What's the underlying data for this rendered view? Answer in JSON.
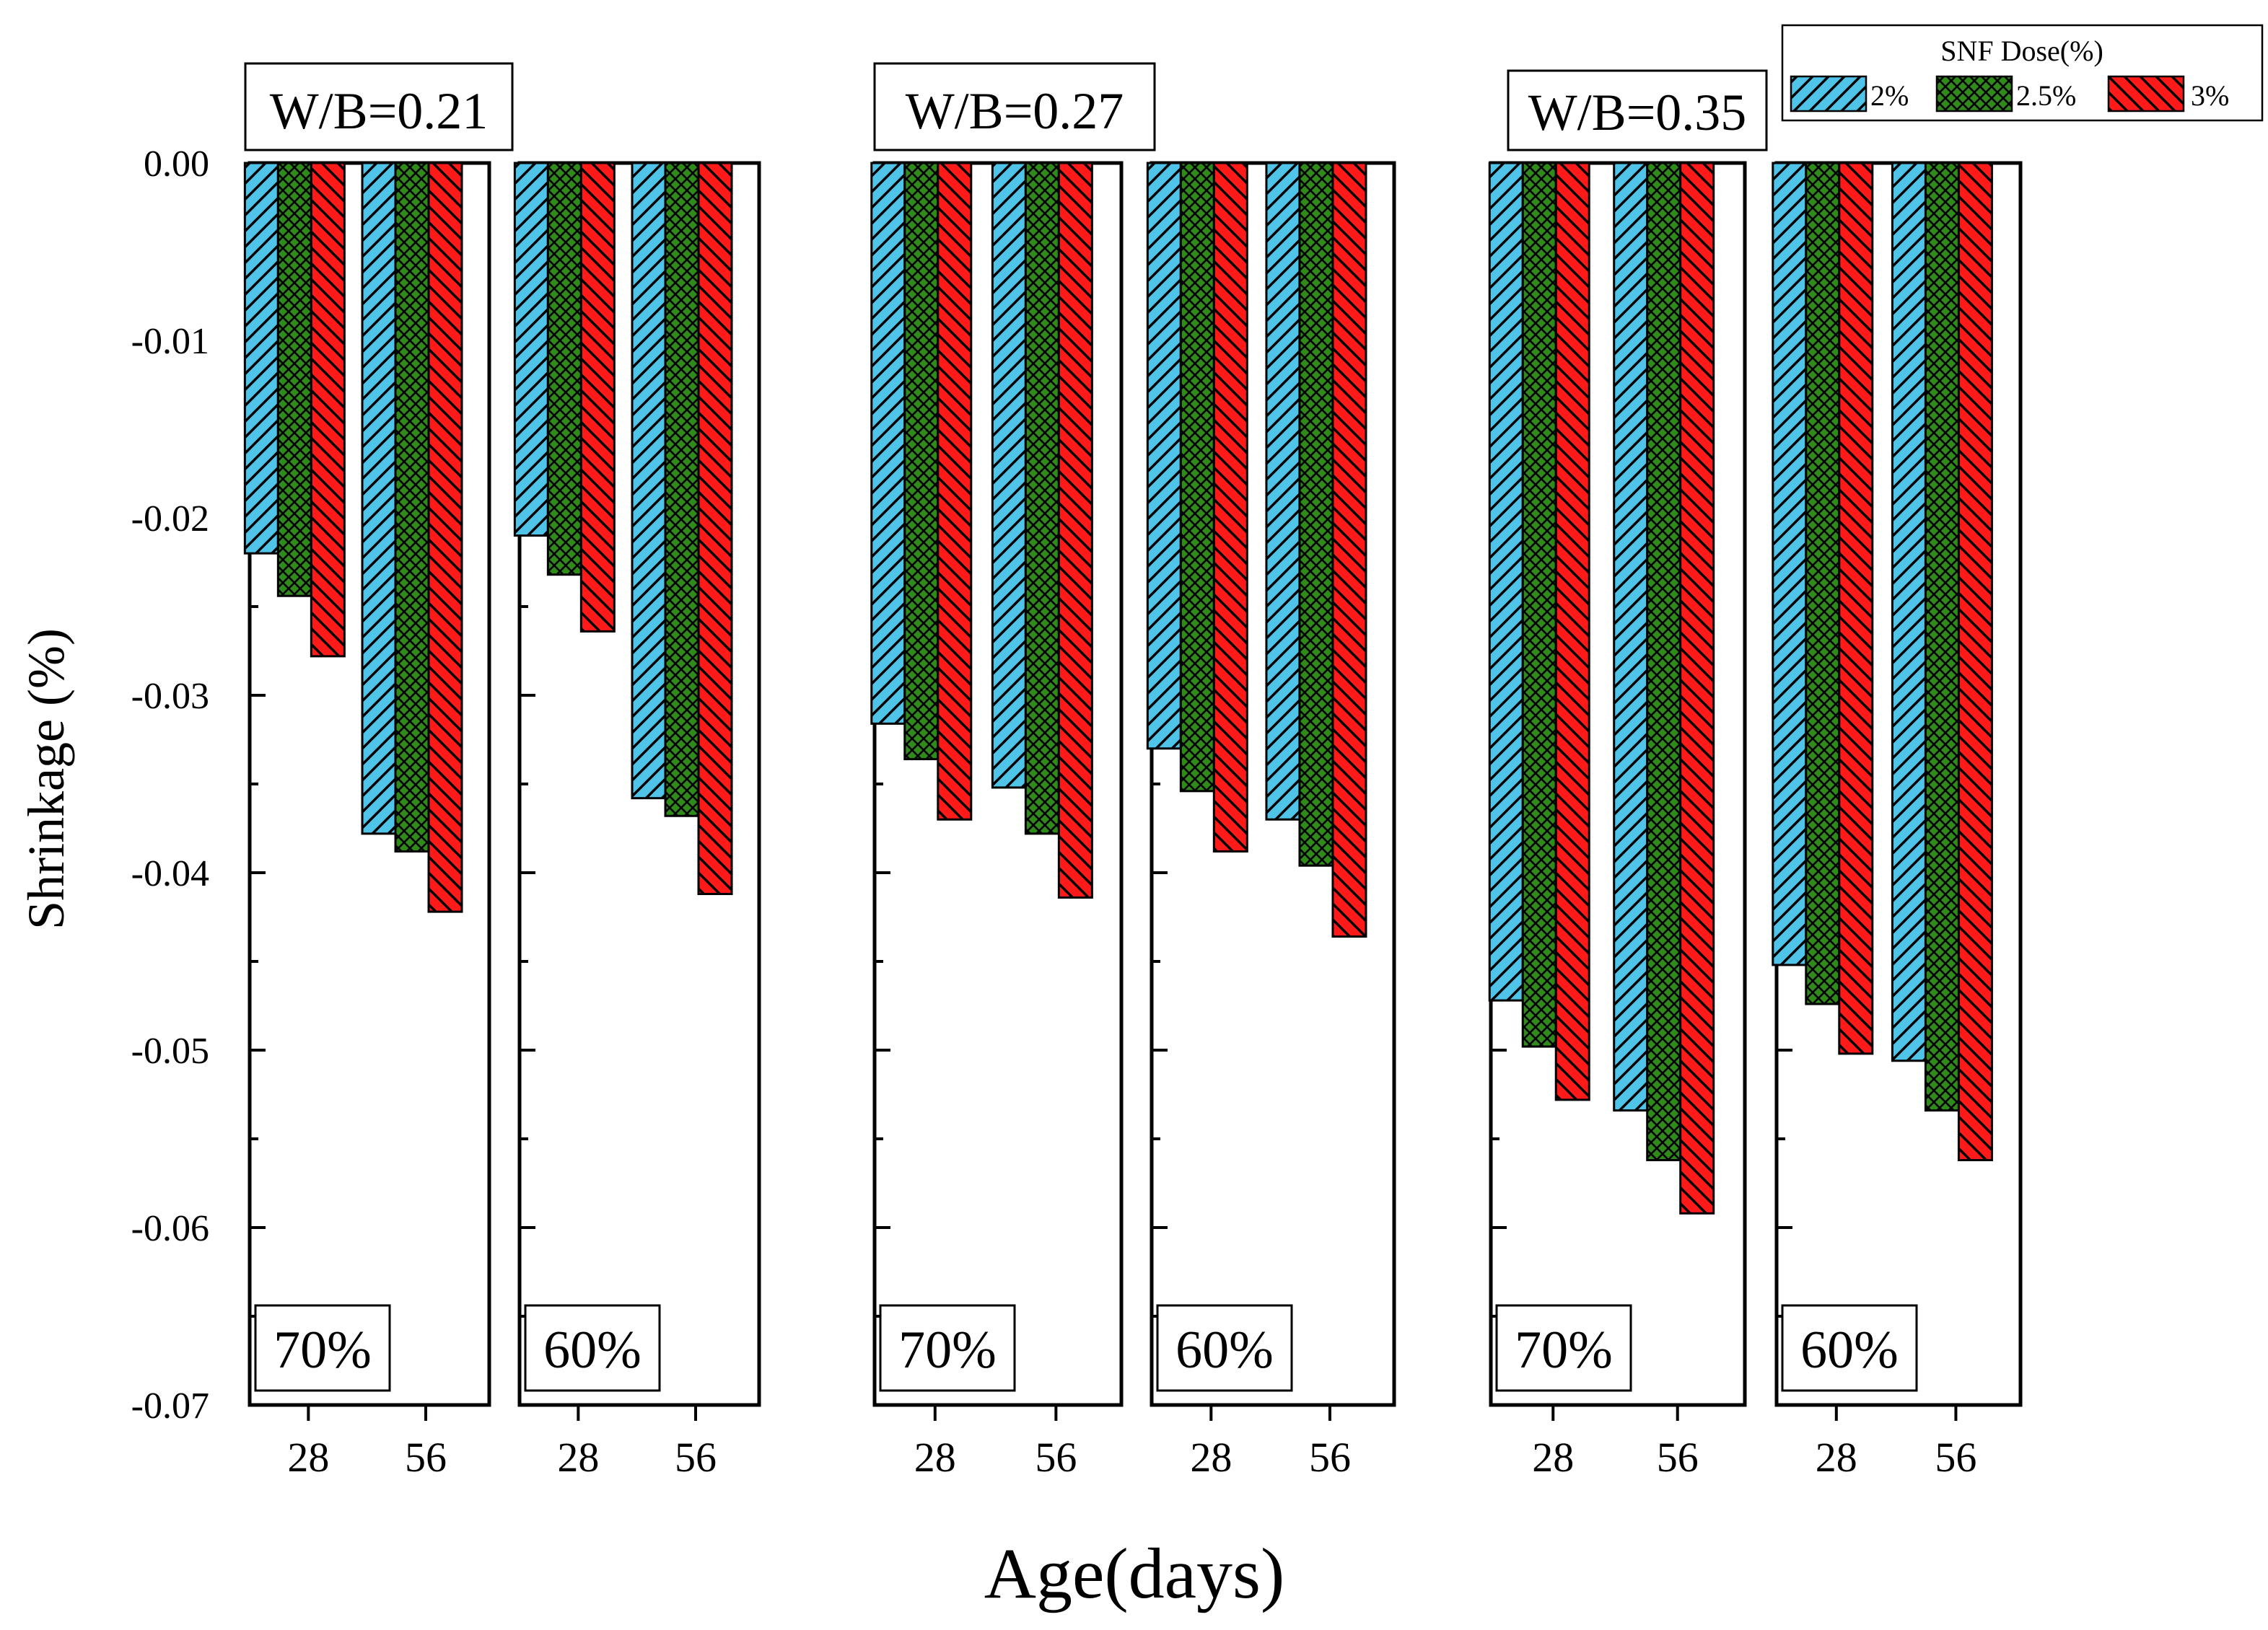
{
  "chart_data": {
    "type": "bar",
    "ylabel": "Shrinkage (%)",
    "xlabel": "Age(days)",
    "ylim": [
      -0.07,
      0
    ],
    "y_ticks": [
      "0.00",
      "-0.01",
      "-0.02",
      "-0.03",
      "-0.04",
      "-0.05",
      "-0.06",
      "-0.07"
    ],
    "y_tick_values": [
      0,
      -0.01,
      -0.02,
      -0.03,
      -0.04,
      -0.05,
      -0.06,
      -0.07
    ],
    "categories": [
      "28",
      "56"
    ],
    "legend": {
      "title": "SNF Dose(%)",
      "entries": [
        {
          "name": "2%",
          "color": "#4fc3e8",
          "pattern": "diagonal-up"
        },
        {
          "name": "2.5%",
          "color": "#2e8b1a",
          "pattern": "crosshatch"
        },
        {
          "name": "3%",
          "color": "#ff1a1a",
          "pattern": "diagonal-down"
        }
      ]
    },
    "groups": [
      {
        "wb_label": "W/B=0.21",
        "panels": [
          {
            "label": "70%",
            "series": [
              {
                "name": "2%",
                "values": [
                  -0.022,
                  -0.0378
                ]
              },
              {
                "name": "2.5%",
                "values": [
                  -0.0244,
                  -0.0388
                ]
              },
              {
                "name": "3%",
                "values": [
                  -0.0278,
                  -0.0422
                ]
              }
            ]
          },
          {
            "label": "60%",
            "series": [
              {
                "name": "2%",
                "values": [
                  -0.021,
                  -0.0358
                ]
              },
              {
                "name": "2.5%",
                "values": [
                  -0.0232,
                  -0.0368
                ]
              },
              {
                "name": "3%",
                "values": [
                  -0.0264,
                  -0.0412
                ]
              }
            ]
          }
        ]
      },
      {
        "wb_label": "W/B=0.27",
        "panels": [
          {
            "label": "70%",
            "series": [
              {
                "name": "2%",
                "values": [
                  -0.0316,
                  -0.0352
                ]
              },
              {
                "name": "2.5%",
                "values": [
                  -0.0336,
                  -0.0378
                ]
              },
              {
                "name": "3%",
                "values": [
                  -0.037,
                  -0.0414
                ]
              }
            ]
          },
          {
            "label": "60%",
            "series": [
              {
                "name": "2%",
                "values": [
                  -0.033,
                  -0.037
                ]
              },
              {
                "name": "2.5%",
                "values": [
                  -0.0354,
                  -0.0396
                ]
              },
              {
                "name": "3%",
                "values": [
                  -0.0388,
                  -0.0436
                ]
              }
            ]
          }
        ]
      },
      {
        "wb_label": "W/B=0.35",
        "panels": [
          {
            "label": "70%",
            "series": [
              {
                "name": "2%",
                "values": [
                  -0.0472,
                  -0.0534
                ]
              },
              {
                "name": "2.5%",
                "values": [
                  -0.0498,
                  -0.0562
                ]
              },
              {
                "name": "3%",
                "values": [
                  -0.0528,
                  -0.0592
                ]
              }
            ]
          },
          {
            "label": "60%",
            "series": [
              {
                "name": "2%",
                "values": [
                  -0.0452,
                  -0.0506
                ]
              },
              {
                "name": "2.5%",
                "values": [
                  -0.0474,
                  -0.0534
                ]
              },
              {
                "name": "3%",
                "values": [
                  -0.0502,
                  -0.0562
                ]
              }
            ]
          }
        ]
      }
    ]
  }
}
